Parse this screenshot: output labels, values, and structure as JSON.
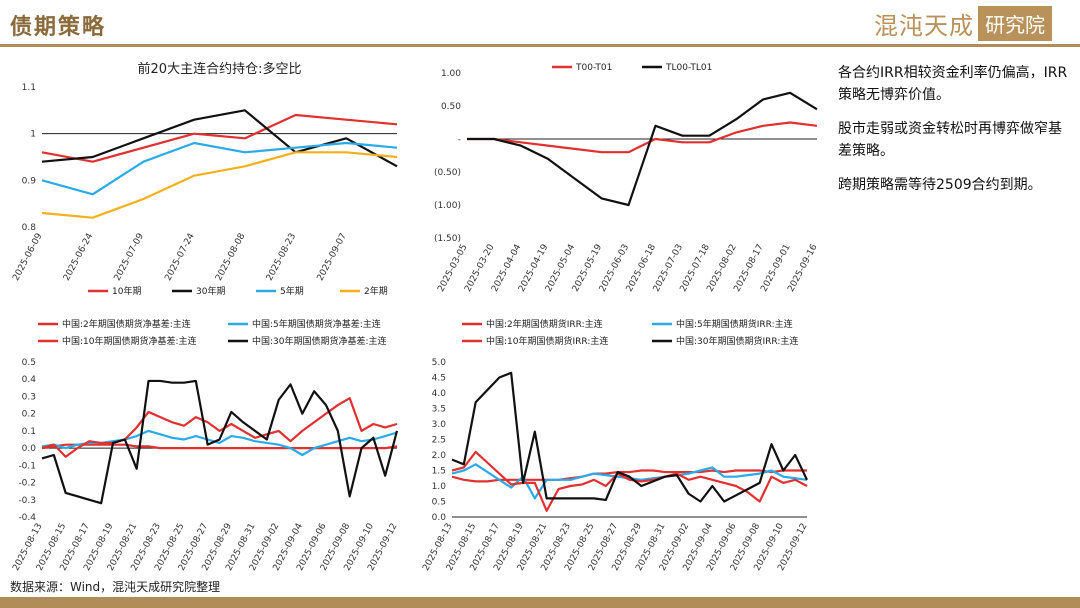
{
  "header": {
    "title": "债期策略",
    "logo_text": "混沌天成",
    "logo_box": "研究院"
  },
  "notes": [
    "各合约IRR相较资金利率仍偏高，IRR策略无博弈价值。",
    "股市走弱或资金转松时再博弈做窄基差策略。",
    "跨期策略需等待2509合约到期。"
  ],
  "source": "数据来源：Wind，混沌天成研究院整理",
  "colors": {
    "red": "#e03030",
    "black": "#111111",
    "blue": "#2aaae8",
    "yellow": "#f2b01e",
    "gold": "#b08d57"
  },
  "chart_data": [
    {
      "id": "c1",
      "type": "line",
      "title": "前20大主连合约持仓:多空比",
      "ylim": [
        0.8,
        1.1
      ],
      "yticks": [
        0.8,
        0.9,
        1,
        1.1
      ],
      "ytick_labels": [
        "0.8",
        "0.9",
        "1",
        "1.1"
      ],
      "x": [
        "2025-06-09",
        "2025-06-24",
        "2025-07-09",
        "2025-07-24",
        "2025-08-08",
        "2025-08-23",
        "2025-09-07",
        "2025-09-16"
      ],
      "xtick_labels": [
        "2025-06-09",
        "2025-06-24",
        "2025-07-09",
        "2025-07-24",
        "2025-08-08",
        "2025-08-23",
        "2025-09-07"
      ],
      "hline": 1,
      "series": [
        {
          "name": "10年期",
          "color": "#e03030",
          "values": [
            0.96,
            0.94,
            0.97,
            1.0,
            0.99,
            1.04,
            1.03,
            1.02
          ]
        },
        {
          "name": "30年期",
          "color": "#111111",
          "values": [
            0.94,
            0.95,
            0.99,
            1.03,
            1.05,
            0.96,
            0.99,
            0.93
          ]
        },
        {
          "name": "5年期",
          "color": "#2aaae8",
          "values": [
            0.9,
            0.87,
            0.94,
            0.98,
            0.96,
            0.97,
            0.98,
            0.97
          ]
        },
        {
          "name": "2年期",
          "color": "#f2b01e",
          "values": [
            0.83,
            0.82,
            0.86,
            0.91,
            0.93,
            0.96,
            0.96,
            0.95
          ]
        }
      ]
    },
    {
      "id": "c2",
      "type": "line",
      "title": "",
      "ylim": [
        -1.5,
        1.0
      ],
      "yticks": [
        -1.5,
        -1.0,
        -0.5,
        0,
        0.5,
        1.0
      ],
      "ytick_labels": [
        "(1.50)",
        "(1.00)",
        "(0.50)",
        "-",
        "0.50",
        "1.00"
      ],
      "x": [
        "2025-03-05",
        "2025-03-20",
        "2025-04-04",
        "2025-04-19",
        "2025-05-04",
        "2025-05-19",
        "2025-06-03",
        "2025-06-18",
        "2025-07-03",
        "2025-07-18",
        "2025-08-02",
        "2025-08-17",
        "2025-09-01",
        "2025-09-16"
      ],
      "xtick_labels": [
        "2025-03-05",
        "2025-03-20",
        "2025-04-04",
        "2025-04-19",
        "2025-05-04",
        "2025-05-19",
        "2025-06-03",
        "2025-06-18",
        "2025-07-03",
        "2025-07-18",
        "2025-08-02",
        "2025-08-17",
        "2025-09-01",
        "2025-09-16"
      ],
      "series": [
        {
          "name": "T00-T01",
          "color": "#e03030",
          "values": [
            0.0,
            0.0,
            -0.05,
            -0.1,
            -0.15,
            -0.2,
            -0.2,
            0.0,
            -0.05,
            -0.05,
            0.1,
            0.2,
            0.25,
            0.2
          ]
        },
        {
          "name": "TL00-TL01",
          "color": "#111111",
          "values": [
            0.0,
            0.0,
            -0.1,
            -0.3,
            -0.6,
            -0.9,
            -1.0,
            0.2,
            0.05,
            0.05,
            0.3,
            0.6,
            0.7,
            0.45
          ]
        }
      ]
    },
    {
      "id": "c3",
      "type": "line",
      "title": "",
      "ylim": [
        -0.4,
        0.5
      ],
      "yticks": [
        -0.4,
        -0.3,
        -0.2,
        -0.1,
        0,
        0.1,
        0.2,
        0.3,
        0.4,
        0.5
      ],
      "ytick_labels": [
        "-0.4",
        "-0.3",
        "-0.2",
        "-0.1",
        "0.0",
        "0.1",
        "0.2",
        "0.3",
        "0.4",
        "0.5"
      ],
      "x": [
        "2025-08-13",
        "2025-08-14",
        "2025-08-15",
        "2025-08-16",
        "2025-08-17",
        "2025-08-18",
        "2025-08-19",
        "2025-08-20",
        "2025-08-21",
        "2025-08-22",
        "2025-08-23",
        "2025-08-24",
        "2025-08-25",
        "2025-08-26",
        "2025-08-27",
        "2025-08-28",
        "2025-08-29",
        "2025-08-30",
        "2025-08-31",
        "2025-09-01",
        "2025-09-02",
        "2025-09-03",
        "2025-09-04",
        "2025-09-05",
        "2025-09-06",
        "2025-09-07",
        "2025-09-08",
        "2025-09-09",
        "2025-09-10",
        "2025-09-11",
        "2025-09-12"
      ],
      "xtick_labels": [
        "2025-08-13",
        "2025-08-15",
        "2025-08-17",
        "2025-08-19",
        "2025-08-21",
        "2025-08-23",
        "2025-08-25",
        "2025-08-27",
        "2025-08-29",
        "2025-08-31",
        "2025-09-02",
        "2025-09-04",
        "2025-09-06",
        "2025-09-08",
        "2025-09-10",
        "2025-09-12"
      ],
      "hline": 0,
      "series": [
        {
          "name": "中国:2年期国债期货净基差:主连",
          "color": "#e03030",
          "values": [
            0.0,
            0.01,
            0.02,
            0.02,
            0.02,
            0.02,
            0.02,
            0.02,
            0.01,
            0.01,
            0.0,
            0.0,
            0.0,
            0.0,
            0.0,
            0.0,
            0.0,
            0.0,
            0.0,
            0.0,
            0.0,
            0.0,
            0.0,
            0.0,
            0.0,
            0.0,
            0.0,
            0.0,
            0.0,
            0.0,
            0.01
          ]
        },
        {
          "name": "中国:5年期国债期货净基差:主连",
          "color": "#2aaae8",
          "values": [
            0.01,
            0.02,
            0.0,
            0.02,
            0.03,
            0.03,
            0.04,
            0.05,
            0.07,
            0.1,
            0.08,
            0.06,
            0.05,
            0.07,
            0.05,
            0.03,
            0.07,
            0.06,
            0.04,
            0.03,
            0.02,
            0.0,
            -0.04,
            0.0,
            0.02,
            0.04,
            0.06,
            0.04,
            0.05,
            0.07,
            0.09
          ]
        },
        {
          "name": "中国:10年期国债期货净基差:主连",
          "color": "#e03030",
          "values": [
            0.0,
            0.02,
            -0.05,
            0.0,
            0.04,
            0.03,
            0.03,
            0.05,
            0.12,
            0.21,
            0.18,
            0.15,
            0.13,
            0.18,
            0.15,
            0.1,
            0.14,
            0.1,
            0.06,
            0.08,
            0.1,
            0.04,
            0.1,
            0.15,
            0.2,
            0.25,
            0.29,
            0.1,
            0.14,
            0.12,
            0.14
          ]
        },
        {
          "name": "中国:30年期国债期货净基差:主连",
          "color": "#111111",
          "values": [
            -0.06,
            -0.04,
            -0.26,
            -0.28,
            -0.3,
            -0.32,
            0.03,
            0.05,
            -0.12,
            0.39,
            0.39,
            0.38,
            0.38,
            0.39,
            0.02,
            0.05,
            0.21,
            0.15,
            0.1,
            0.05,
            0.28,
            0.37,
            0.2,
            0.33,
            0.25,
            0.1,
            -0.28,
            0.0,
            0.06,
            -0.16,
            0.1
          ]
        }
      ]
    },
    {
      "id": "c4",
      "type": "line",
      "title": "",
      "ylim": [
        0.0,
        5.0
      ],
      "yticks": [
        0,
        0.5,
        1,
        1.5,
        2,
        2.5,
        3,
        3.5,
        4,
        4.5,
        5
      ],
      "ytick_labels": [
        "0.0",
        "0.5",
        "1.0",
        "1.5",
        "2.0",
        "2.5",
        "3.0",
        "3.5",
        "4.0",
        "4.5",
        "5.0"
      ],
      "x": [
        "2025-08-13",
        "2025-08-14",
        "2025-08-15",
        "2025-08-16",
        "2025-08-17",
        "2025-08-18",
        "2025-08-19",
        "2025-08-20",
        "2025-08-21",
        "2025-08-22",
        "2025-08-23",
        "2025-08-24",
        "2025-08-25",
        "2025-08-26",
        "2025-08-27",
        "2025-08-28",
        "2025-08-29",
        "2025-08-30",
        "2025-08-31",
        "2025-09-01",
        "2025-09-02",
        "2025-09-03",
        "2025-09-04",
        "2025-09-05",
        "2025-09-06",
        "2025-09-07",
        "2025-09-08",
        "2025-09-09",
        "2025-09-10",
        "2025-09-11",
        "2025-09-12"
      ],
      "xtick_labels": [
        "2025-08-13",
        "2025-08-15",
        "2025-08-17",
        "2025-08-19",
        "2025-08-21",
        "2025-08-23",
        "2025-08-25",
        "2025-08-27",
        "2025-08-29",
        "2025-08-31",
        "2025-09-02",
        "2025-09-04",
        "2025-09-06",
        "2025-09-08",
        "2025-09-10",
        "2025-09-12"
      ],
      "series": [
        {
          "name": "中国:2年期国债期货IRR:主连",
          "color": "#e03030",
          "values": [
            1.3,
            1.2,
            1.15,
            1.15,
            1.2,
            1.2,
            1.2,
            1.2,
            1.2,
            1.2,
            1.25,
            1.3,
            1.4,
            1.4,
            1.45,
            1.45,
            1.5,
            1.5,
            1.45,
            1.45,
            1.45,
            1.45,
            1.5,
            1.45,
            1.5,
            1.5,
            1.5,
            1.45,
            1.5,
            1.5,
            1.5
          ]
        },
        {
          "name": "中国:5年期国债期货IRR:主连",
          "color": "#2aaae8",
          "values": [
            1.4,
            1.5,
            1.7,
            1.45,
            1.2,
            0.95,
            1.3,
            0.6,
            1.2,
            1.2,
            1.2,
            1.3,
            1.4,
            1.35,
            1.3,
            1.25,
            1.2,
            1.25,
            1.3,
            1.35,
            1.4,
            1.5,
            1.6,
            1.3,
            1.3,
            1.35,
            1.4,
            1.5,
            1.3,
            1.25,
            1.2
          ]
        },
        {
          "name": "中国:10年期国债期货IRR:主连",
          "color": "#e03030",
          "values": [
            1.5,
            1.6,
            2.1,
            1.75,
            1.4,
            1.05,
            1.1,
            1.1,
            0.2,
            0.9,
            1.0,
            1.05,
            1.2,
            1.0,
            1.4,
            1.2,
            1.15,
            1.2,
            1.3,
            1.4,
            1.2,
            1.3,
            1.2,
            1.1,
            1.0,
            0.8,
            0.5,
            1.3,
            1.1,
            1.2,
            1.0
          ]
        },
        {
          "name": "中国:30年期国债期货IRR:主连",
          "color": "#111111",
          "values": [
            1.85,
            1.7,
            3.7,
            4.1,
            4.5,
            4.65,
            1.1,
            2.75,
            0.6,
            0.6,
            0.6,
            0.6,
            0.6,
            0.55,
            1.45,
            1.3,
            1.0,
            1.15,
            1.3,
            1.35,
            0.75,
            0.5,
            1.0,
            0.5,
            0.7,
            0.9,
            1.1,
            2.35,
            1.5,
            2.0,
            1.2
          ]
        }
      ]
    }
  ]
}
